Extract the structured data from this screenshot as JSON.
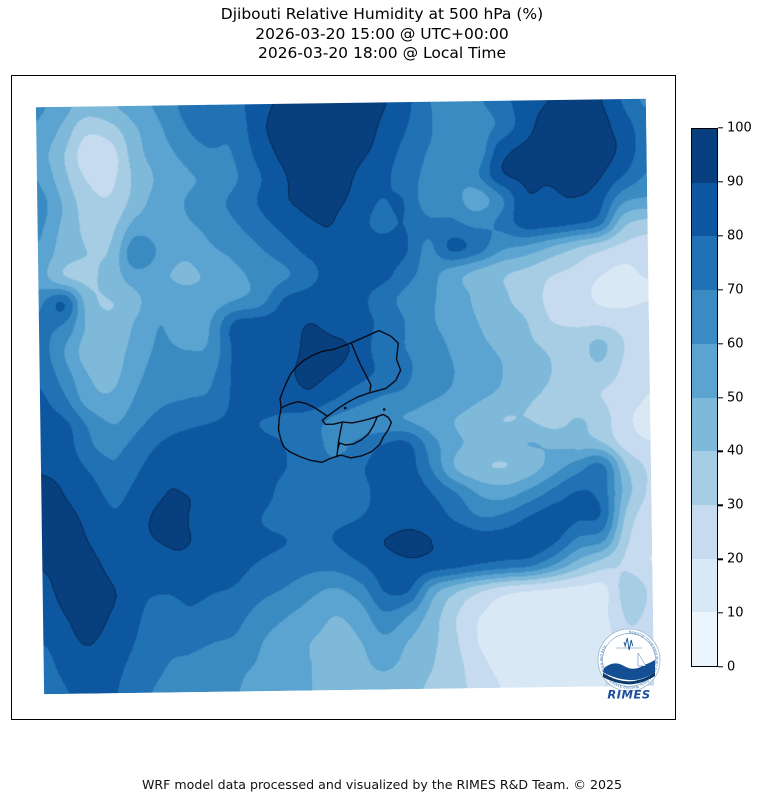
{
  "header": {
    "line1": "Djibouti Relative Humidity at 500 hPa (%)",
    "line2": "2026-03-20 15:00 @ UTC+00:00",
    "line3": "2026-03-20 18:00 @ Local Time"
  },
  "footer": {
    "text": "WRF model data processed and visualized by the RIMES R&D Team. © 2025"
  },
  "logo": {
    "name": "RIMES",
    "ring_text": "Regional Integrated Multi-Hazard Early Warning System for Africa and Asia",
    "accent_color": "#1d4f9e"
  },
  "colorbar": {
    "ticks": [
      100,
      90,
      80,
      70,
      60,
      50,
      40,
      30,
      20,
      10,
      0
    ],
    "unit": "%"
  },
  "chart_data": {
    "type": "heatmap",
    "title": "Djibouti Relative Humidity at 500 hPa (%)",
    "variable": "Relative Humidity",
    "pressure_level_hPa": 500,
    "units": "%",
    "valid_time_utc": "2026-03-20 15:00 @ UTC+00:00",
    "valid_time_local": "2026-03-20 18:00 @ Local Time",
    "levels": [
      0,
      10,
      20,
      30,
      40,
      50,
      60,
      70,
      80,
      90,
      100
    ],
    "palette": [
      "#edf5fc",
      "#d9e8f5",
      "#c6dbef",
      "#a6cde4",
      "#7fb9da",
      "#5ba3d0",
      "#3b8bc3",
      "#2171b5",
      "#0d57a1",
      "#083f7f"
    ],
    "contour_edge_color": "#06294f",
    "grid_cols": 26,
    "grid_rows": 25,
    "grid": [
      [
        62,
        55,
        45,
        48,
        55,
        62,
        72,
        80,
        75,
        85,
        92,
        95,
        95,
        95,
        92,
        85,
        72,
        65,
        68,
        75,
        85,
        90,
        95,
        92,
        80,
        68
      ],
      [
        58,
        48,
        32,
        35,
        48,
        58,
        68,
        75,
        72,
        85,
        95,
        97,
        97,
        95,
        90,
        82,
        72,
        65,
        65,
        72,
        85,
        95,
        97,
        95,
        85,
        75
      ],
      [
        55,
        42,
        25,
        25,
        45,
        55,
        62,
        68,
        70,
        82,
        92,
        97,
        95,
        92,
        88,
        78,
        70,
        68,
        62,
        85,
        92,
        95,
        97,
        95,
        88,
        75
      ],
      [
        60,
        45,
        30,
        28,
        42,
        52,
        58,
        62,
        68,
        78,
        88,
        95,
        95,
        90,
        85,
        75,
        68,
        62,
        68,
        88,
        92,
        92,
        95,
        92,
        82,
        70
      ],
      [
        65,
        50,
        35,
        32,
        45,
        55,
        60,
        65,
        72,
        80,
        88,
        92,
        92,
        88,
        80,
        80,
        65,
        65,
        55,
        68,
        88,
        88,
        90,
        85,
        65,
        60
      ],
      [
        62,
        48,
        38,
        38,
        55,
        55,
        58,
        62,
        68,
        75,
        82,
        88,
        90,
        85,
        78,
        80,
        72,
        72,
        68,
        72,
        85,
        85,
        82,
        75,
        45,
        38
      ],
      [
        58,
        45,
        40,
        42,
        68,
        58,
        52,
        58,
        62,
        68,
        75,
        82,
        88,
        88,
        85,
        82,
        68,
        82,
        75,
        62,
        58,
        50,
        42,
        35,
        28,
        25
      ],
      [
        55,
        42,
        38,
        45,
        55,
        52,
        48,
        52,
        58,
        62,
        68,
        75,
        85,
        88,
        85,
        75,
        65,
        55,
        48,
        42,
        38,
        32,
        28,
        22,
        18,
        22
      ],
      [
        68,
        80,
        45,
        40,
        48,
        58,
        55,
        55,
        60,
        65,
        80,
        85,
        88,
        85,
        75,
        68,
        62,
        55,
        48,
        42,
        35,
        28,
        25,
        18,
        15,
        18
      ],
      [
        72,
        68,
        48,
        42,
        52,
        60,
        52,
        60,
        82,
        85,
        85,
        90,
        88,
        85,
        78,
        70,
        62,
        55,
        50,
        45,
        40,
        30,
        28,
        26,
        25,
        28
      ],
      [
        75,
        60,
        45,
        45,
        55,
        62,
        60,
        62,
        82,
        85,
        85,
        92,
        92,
        88,
        75,
        70,
        65,
        58,
        52,
        48,
        42,
        38,
        35,
        42,
        30,
        25
      ],
      [
        78,
        65,
        50,
        48,
        58,
        65,
        65,
        68,
        82,
        85,
        88,
        92,
        90,
        85,
        78,
        72,
        65,
        60,
        55,
        50,
        45,
        40,
        35,
        38,
        28,
        22
      ],
      [
        82,
        72,
        55,
        52,
        62,
        68,
        70,
        72,
        82,
        85,
        85,
        88,
        82,
        75,
        70,
        68,
        62,
        58,
        52,
        48,
        42,
        38,
        32,
        30,
        25,
        20
      ],
      [
        85,
        82,
        68,
        60,
        68,
        75,
        78,
        80,
        82,
        80,
        78,
        75,
        68,
        65,
        62,
        60,
        55,
        50,
        45,
        40,
        40,
        35,
        40,
        35,
        22,
        18
      ],
      [
        88,
        85,
        72,
        68,
        75,
        82,
        85,
        85,
        85,
        82,
        80,
        75,
        68,
        72,
        80,
        82,
        65,
        52,
        48,
        45,
        50,
        48,
        45,
        40,
        25,
        20
      ],
      [
        90,
        88,
        80,
        72,
        80,
        88,
        88,
        88,
        85,
        82,
        80,
        78,
        72,
        78,
        85,
        85,
        70,
        50,
        42,
        40,
        45,
        55,
        65,
        72,
        40,
        28
      ],
      [
        92,
        90,
        85,
        78,
        85,
        90,
        90,
        88,
        85,
        82,
        78,
        75,
        72,
        75,
        85,
        88,
        80,
        70,
        58,
        55,
        62,
        72,
        80,
        75,
        45,
        28
      ],
      [
        92,
        92,
        88,
        82,
        88,
        92,
        90,
        88,
        85,
        80,
        78,
        78,
        78,
        80,
        85,
        88,
        85,
        78,
        70,
        72,
        80,
        85,
        82,
        78,
        38,
        25
      ],
      [
        92,
        92,
        90,
        85,
        88,
        90,
        90,
        88,
        85,
        82,
        80,
        78,
        80,
        85,
        90,
        92,
        90,
        88,
        85,
        85,
        88,
        82,
        68,
        62,
        32,
        22
      ],
      [
        90,
        92,
        92,
        88,
        85,
        88,
        88,
        85,
        82,
        78,
        75,
        72,
        72,
        78,
        85,
        88,
        85,
        82,
        78,
        75,
        72,
        60,
        45,
        35,
        28,
        20
      ],
      [
        88,
        92,
        92,
        90,
        82,
        80,
        82,
        80,
        78,
        72,
        68,
        62,
        58,
        65,
        80,
        80,
        55,
        42,
        32,
        25,
        22,
        20,
        18,
        18,
        35,
        28
      ],
      [
        85,
        90,
        92,
        88,
        80,
        75,
        78,
        75,
        72,
        65,
        60,
        55,
        50,
        55,
        68,
        60,
        45,
        30,
        20,
        15,
        15,
        14,
        14,
        18,
        32,
        28
      ],
      [
        80,
        88,
        90,
        85,
        78,
        72,
        72,
        70,
        68,
        60,
        55,
        50,
        48,
        50,
        58,
        50,
        42,
        30,
        18,
        12,
        14,
        12,
        12,
        16,
        28,
        24
      ],
      [
        75,
        85,
        88,
        82,
        75,
        70,
        68,
        65,
        62,
        58,
        52,
        50,
        48,
        48,
        52,
        46,
        40,
        32,
        22,
        14,
        12,
        12,
        14,
        18,
        26,
        22
      ],
      [
        70,
        80,
        85,
        80,
        72,
        68,
        65,
        62,
        60,
        55,
        52,
        50,
        48,
        46,
        45,
        42,
        38,
        32,
        26,
        18,
        15,
        15,
        16,
        20,
        24,
        20
      ]
    ]
  },
  "map_overlay": {
    "name": "Djibouti admin boundaries",
    "stroke": "#0a0a14",
    "polylines": [
      [
        [
          295,
          246
        ],
        [
          312,
          240
        ],
        [
          340,
          228
        ],
        [
          352,
          234
        ],
        [
          359,
          241
        ],
        [
          357,
          257
        ],
        [
          361,
          268
        ],
        [
          356,
          278
        ],
        [
          346,
          286
        ],
        [
          330,
          290
        ],
        [
          318,
          294
        ],
        [
          308,
          299
        ],
        [
          300,
          304
        ],
        [
          294,
          308
        ],
        [
          287,
          313
        ],
        [
          282,
          317
        ],
        [
          285,
          321
        ],
        [
          293,
          321
        ],
        [
          302,
          319
        ],
        [
          312,
          320
        ],
        [
          322,
          318
        ],
        [
          330,
          316
        ],
        [
          337,
          314
        ],
        [
          343,
          312
        ],
        [
          348,
          315
        ],
        [
          351,
          320
        ],
        [
          348,
          327
        ],
        [
          343,
          334
        ],
        [
          339,
          342
        ],
        [
          331,
          349
        ],
        [
          321,
          353
        ],
        [
          310,
          355
        ],
        [
          300,
          352
        ],
        [
          290,
          355
        ],
        [
          281,
          359
        ],
        [
          270,
          357
        ],
        [
          259,
          353
        ],
        [
          249,
          348
        ],
        [
          243,
          343
        ],
        [
          240,
          335
        ],
        [
          238,
          325
        ],
        [
          239,
          314
        ],
        [
          241,
          304
        ],
        [
          240,
          295
        ],
        [
          243,
          287
        ],
        [
          247,
          278
        ],
        [
          251,
          270
        ],
        [
          257,
          263
        ],
        [
          264,
          257
        ],
        [
          273,
          252
        ],
        [
          283,
          248
        ],
        [
          295,
          246
        ]
      ],
      [
        [
          312,
          240
        ],
        [
          316,
          250
        ],
        [
          321,
          262
        ],
        [
          327,
          274
        ],
        [
          331,
          282
        ],
        [
          330,
          289
        ]
      ],
      [
        [
          241,
          304
        ],
        [
          250,
          300
        ],
        [
          258,
          298
        ],
        [
          266,
          300
        ],
        [
          274,
          304
        ],
        [
          280,
          308
        ],
        [
          287,
          313
        ]
      ],
      [
        [
          302,
          319
        ],
        [
          300,
          328
        ],
        [
          298,
          338
        ],
        [
          297,
          346
        ],
        [
          296,
          354
        ]
      ],
      [
        [
          337,
          314
        ],
        [
          333,
          323
        ],
        [
          328,
          331
        ],
        [
          321,
          337
        ],
        [
          313,
          341
        ],
        [
          305,
          342
        ],
        [
          299,
          340
        ],
        [
          297,
          346
        ]
      ]
    ],
    "islands": [
      [
        305,
        305
      ],
      [
        344,
        307
      ]
    ]
  }
}
